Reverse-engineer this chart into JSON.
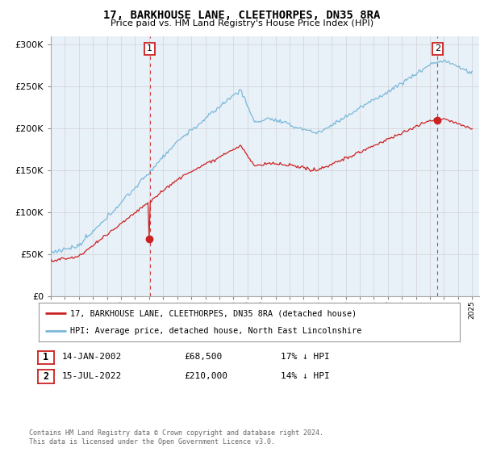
{
  "title": "17, BARKHOUSE LANE, CLEETHORPES, DN35 8RA",
  "subtitle": "Price paid vs. HM Land Registry's House Price Index (HPI)",
  "legend_line1": "17, BARKHOUSE LANE, CLEETHORPES, DN35 8RA (detached house)",
  "legend_line2": "HPI: Average price, detached house, North East Lincolnshire",
  "table_row1": [
    "1",
    "14-JAN-2002",
    "£68,500",
    "17% ↓ HPI"
  ],
  "table_row2": [
    "2",
    "15-JUL-2022",
    "£210,000",
    "14% ↓ HPI"
  ],
  "footer": "Contains HM Land Registry data © Crown copyright and database right 2024.\nThis data is licensed under the Open Government Licence v3.0.",
  "sale1_x": 2002.04,
  "sale1_y": 68500,
  "sale2_x": 2022.54,
  "sale2_y": 210000,
  "hpi_color": "#7ab8d9",
  "price_color": "#cc2222",
  "dashed_line_color": "#cc2222",
  "grid_color": "#cccccc",
  "chart_bg": "#e8f0f8",
  "bg_color": "#ffffff",
  "ylim": [
    0,
    310000
  ],
  "xlim_start": 1995.0,
  "xlim_end": 2025.5,
  "yticks": [
    0,
    50000,
    100000,
    150000,
    200000,
    250000,
    300000
  ]
}
